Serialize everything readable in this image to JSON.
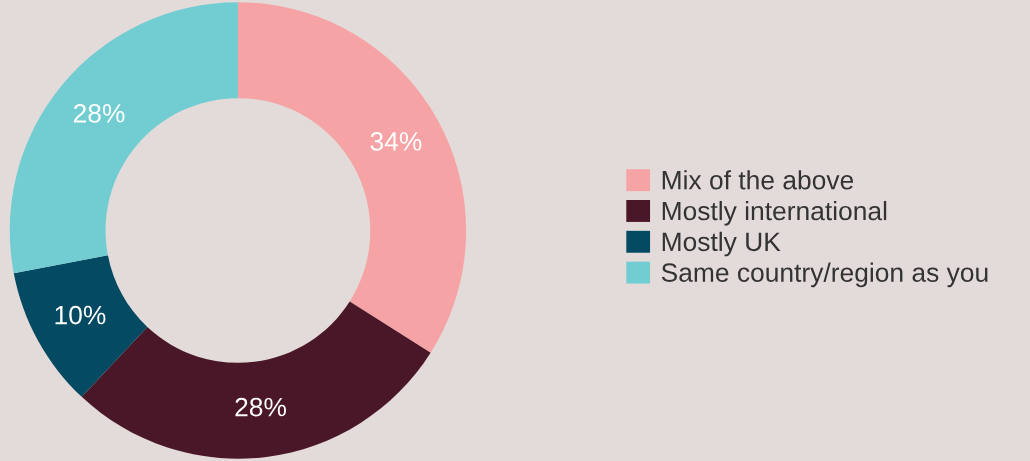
{
  "chart_data": {
    "type": "donut",
    "categories": [
      "Mix of the above",
      "Mostly international",
      "Mostly UK",
      "Same country/region as you"
    ],
    "values": [
      34,
      28,
      10,
      28
    ],
    "colors": [
      "#f5a3a5",
      "#4a1728",
      "#034a62",
      "#72cdd3"
    ],
    "value_labels": [
      "34%",
      "28%",
      "10%",
      "28%"
    ],
    "legend": "right"
  }
}
